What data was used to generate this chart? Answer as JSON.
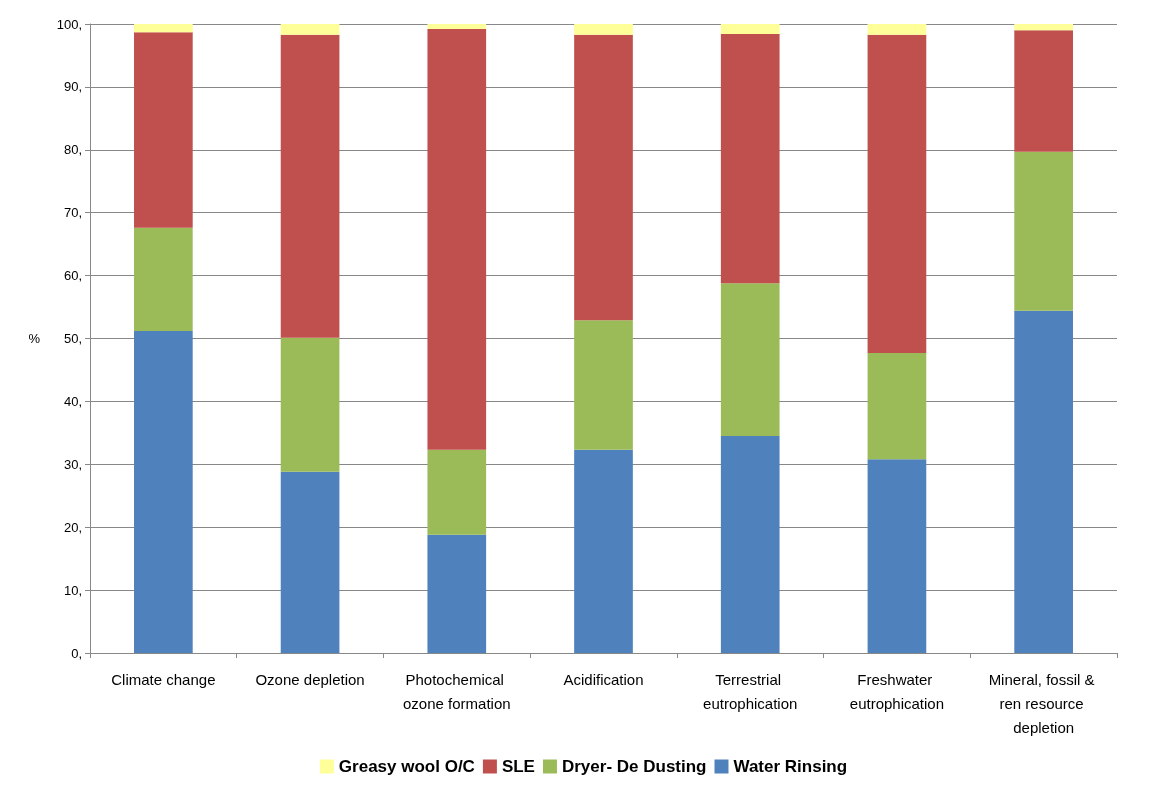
{
  "chart_data": {
    "type": "bar",
    "stacked": true,
    "ylabel": "%",
    "categories": [
      "Climate change",
      "Ozone depletion",
      "Photochemical ozone formation",
      "Acidification",
      "Terrestrial eutrophication",
      "Freshwater eutrophication",
      "Mineral, fossil & ren resource depletion"
    ],
    "series": [
      {
        "name": "Water Rinsing",
        "color": "#4f81bd",
        "values": [
          51.2,
          28.8,
          18.8,
          32.3,
          34.5,
          30.8,
          54.4
        ]
      },
      {
        "name": "Dryer- De Dusting",
        "color": "#9bbb59",
        "values": [
          16.4,
          21.3,
          13.5,
          20.6,
          24.3,
          16.9,
          25.3
        ]
      },
      {
        "name": "SLE",
        "color": "#c0504d",
        "values": [
          31.1,
          48.2,
          66.9,
          45.4,
          39.6,
          50.6,
          19.3
        ]
      },
      {
        "name": "Greasy wool O/C",
        "color": "#ffff99",
        "values": [
          1.3,
          1.7,
          0.8,
          1.7,
          1.6,
          1.7,
          1.0
        ]
      }
    ],
    "ylim": [
      0,
      100
    ],
    "yticks": [
      {
        "value": 0,
        "label": "0,"
      },
      {
        "value": 10,
        "label": "10,"
      },
      {
        "value": 20,
        "label": "20,"
      },
      {
        "value": 30,
        "label": "30,"
      },
      {
        "value": 40,
        "label": "40,"
      },
      {
        "value": 50,
        "label": "50,"
      },
      {
        "value": 60,
        "label": "60,"
      },
      {
        "value": 70,
        "label": "70,"
      },
      {
        "value": 80,
        "label": "80,"
      },
      {
        "value": 90,
        "label": "90,"
      },
      {
        "value": 100,
        "label": "100,"
      }
    ],
    "grid": "y",
    "legend": "bottom"
  }
}
